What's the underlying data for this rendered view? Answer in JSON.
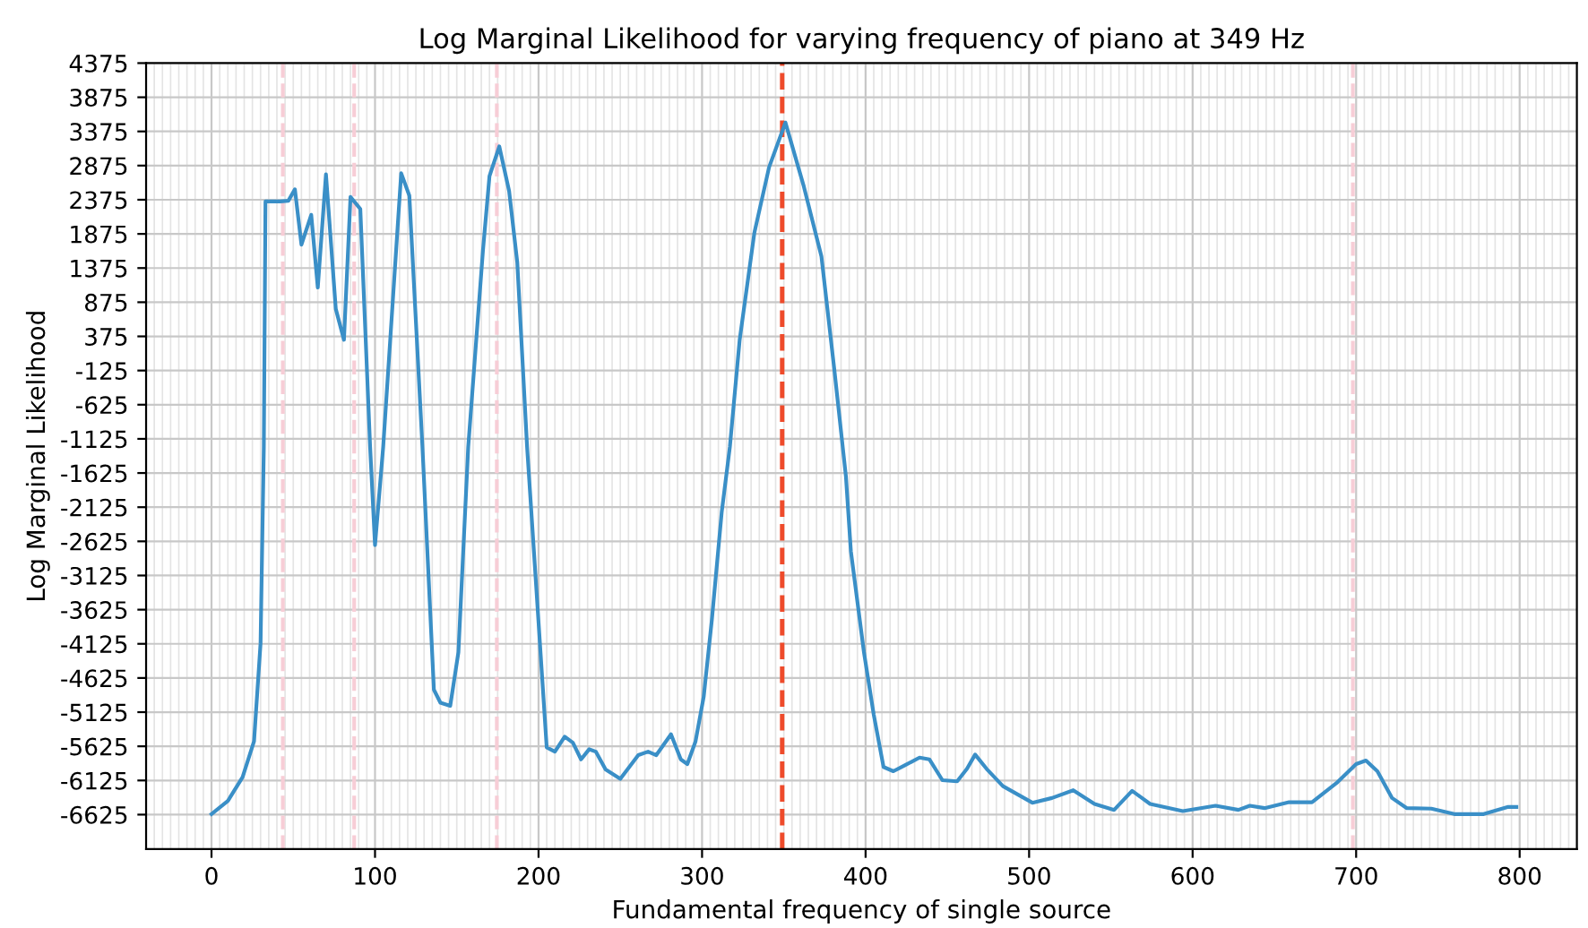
{
  "chart_data": {
    "type": "line",
    "title": "Log Marginal Likelihood for varying frequency of piano at 349 Hz",
    "xlabel": "Fundamental frequency of single source",
    "ylabel": "Log Marginal Likelihood",
    "series": [
      {
        "color": "#3a8fc7",
        "x": [
          0,
          10,
          19,
          26,
          30,
          32,
          33,
          42,
          47,
          51,
          55,
          61,
          65,
          70,
          76,
          81,
          85,
          91,
          97,
          100,
          105,
          116,
          121,
          129,
          136,
          140,
          146,
          151,
          157,
          166,
          170,
          176,
          182,
          187,
          193,
          205,
          210,
          216,
          221,
          226,
          231,
          235,
          241,
          250,
          261,
          267,
          272,
          281,
          287,
          291,
          296,
          301,
          306,
          312,
          317,
          323,
          332,
          341,
          351,
          362,
          373,
          381,
          388,
          391,
          399,
          405,
          411,
          417,
          424,
          433,
          439,
          447,
          456,
          462,
          467,
          474,
          484,
          502,
          514,
          527,
          540,
          552,
          563,
          574,
          594,
          614,
          628,
          635,
          644,
          659,
          673,
          688,
          700,
          706,
          713,
          722,
          731,
          746,
          760,
          778,
          793,
          798
        ],
        "values": [
          -6617,
          -6425,
          -6077,
          -5554,
          -4117,
          -1243,
          2350,
          2350,
          2360,
          2528,
          1718,
          2154,
          1090,
          2747,
          777,
          325,
          2415,
          2240,
          -1243,
          -2680,
          -1243,
          2763,
          2434,
          -1243,
          -4797,
          -4987,
          -5032,
          -4248,
          -1243,
          1631,
          2721,
          3155,
          2502,
          1456,
          -1243,
          -5641,
          -5703,
          -5484,
          -5572,
          -5816,
          -5668,
          -5703,
          -5964,
          -6103,
          -5755,
          -5703,
          -5755,
          -5450,
          -5816,
          -5886,
          -5554,
          -4901,
          -3770,
          -2202,
          -1243,
          325,
          1893,
          2852,
          3505,
          2590,
          1545,
          -136,
          -1680,
          -2767,
          -4248,
          -5162,
          -5928,
          -5990,
          -5903,
          -5790,
          -5816,
          -6121,
          -6138,
          -5955,
          -5746,
          -5955,
          -6208,
          -6451,
          -6382,
          -6268,
          -6469,
          -6556,
          -6277,
          -6469,
          -6573,
          -6495,
          -6556,
          -6495,
          -6530,
          -6443,
          -6443,
          -6163,
          -5886,
          -5833,
          -5990,
          -6382,
          -6530,
          -6538,
          -6617,
          -6617,
          -6512,
          -6512
        ]
      }
    ],
    "xlim": [
      -40,
      835
    ],
    "ylim": [
      -7130,
      4375
    ],
    "xticks": [
      0,
      100,
      200,
      300,
      400,
      500,
      600,
      700,
      800
    ],
    "yticks": [
      -6625,
      -6125,
      -5625,
      -5125,
      -4625,
      -4125,
      -3625,
      -3125,
      -2625,
      -2125,
      -1625,
      -1125,
      -625,
      -125,
      375,
      875,
      1375,
      1875,
      2375,
      2875,
      3375,
      3875,
      4375
    ],
    "grid": true,
    "line_style": "solid",
    "marker": "none",
    "ref_lines": [
      {
        "axis": "x",
        "value": 349,
        "color": "#ee4b2b",
        "line_style": "dashed"
      },
      {
        "axis": "x",
        "value": 43.625,
        "color": "#f7cdd6",
        "line_style": "dashed"
      },
      {
        "axis": "x",
        "value": 87.25,
        "color": "#f7cdd6",
        "line_style": "dashed"
      },
      {
        "axis": "x",
        "value": 174.5,
        "color": "#f7cdd6",
        "line_style": "dashed"
      },
      {
        "axis": "x",
        "value": 698,
        "color": "#f7cdd6",
        "line_style": "dashed"
      }
    ]
  }
}
